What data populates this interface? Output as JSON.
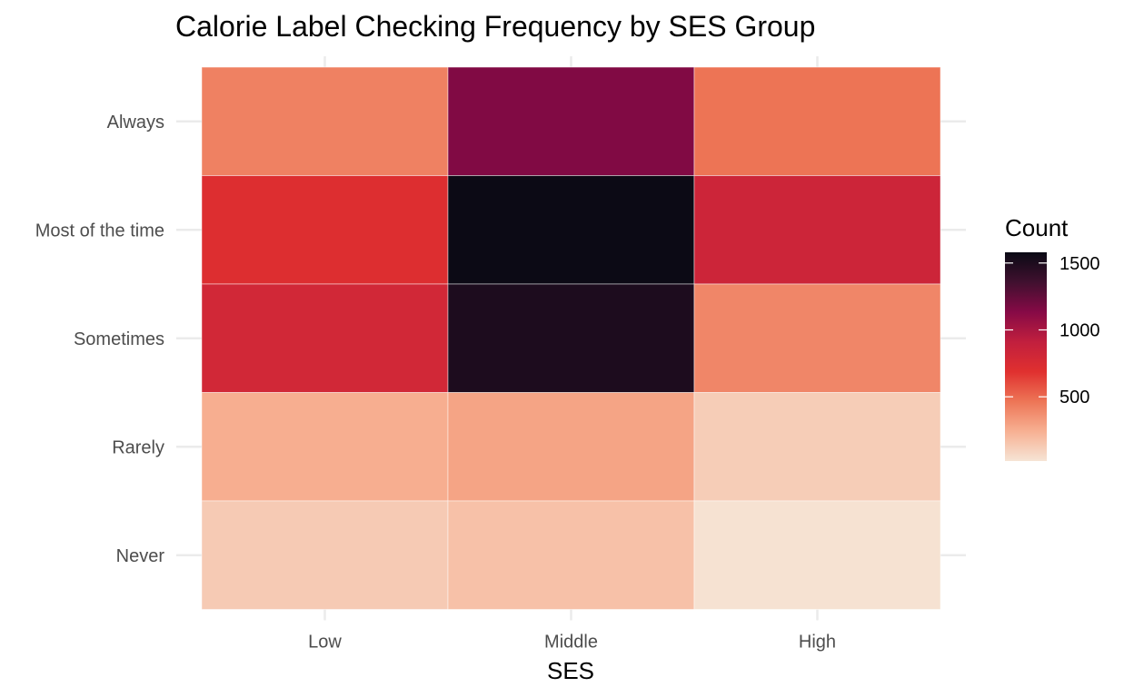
{
  "chart_data": {
    "type": "heatmap",
    "title": "Calorie Label Checking Frequency by SES Group",
    "xlabel": "SES",
    "ylabel": "",
    "x_categories": [
      "Low",
      "Middle",
      "High"
    ],
    "y_categories": [
      "Always",
      "Most of the time",
      "Sometimes",
      "Rarely",
      "Never"
    ],
    "values": [
      [
        420,
        1150,
        470
      ],
      [
        710,
        1570,
        830
      ],
      [
        800,
        1500,
        400
      ],
      [
        250,
        290,
        120
      ],
      [
        130,
        170,
        30
      ]
    ],
    "legend": {
      "title": "Count",
      "ticks": [
        500,
        1000,
        1500
      ],
      "range": [
        20,
        1580
      ],
      "placement": "right",
      "colors": [
        "#f6e4d5",
        "#f7b092",
        "#ed7556",
        "#e0302f",
        "#c11f3e",
        "#860a46",
        "#40102f",
        "#0a0a14"
      ]
    },
    "grid": true
  }
}
